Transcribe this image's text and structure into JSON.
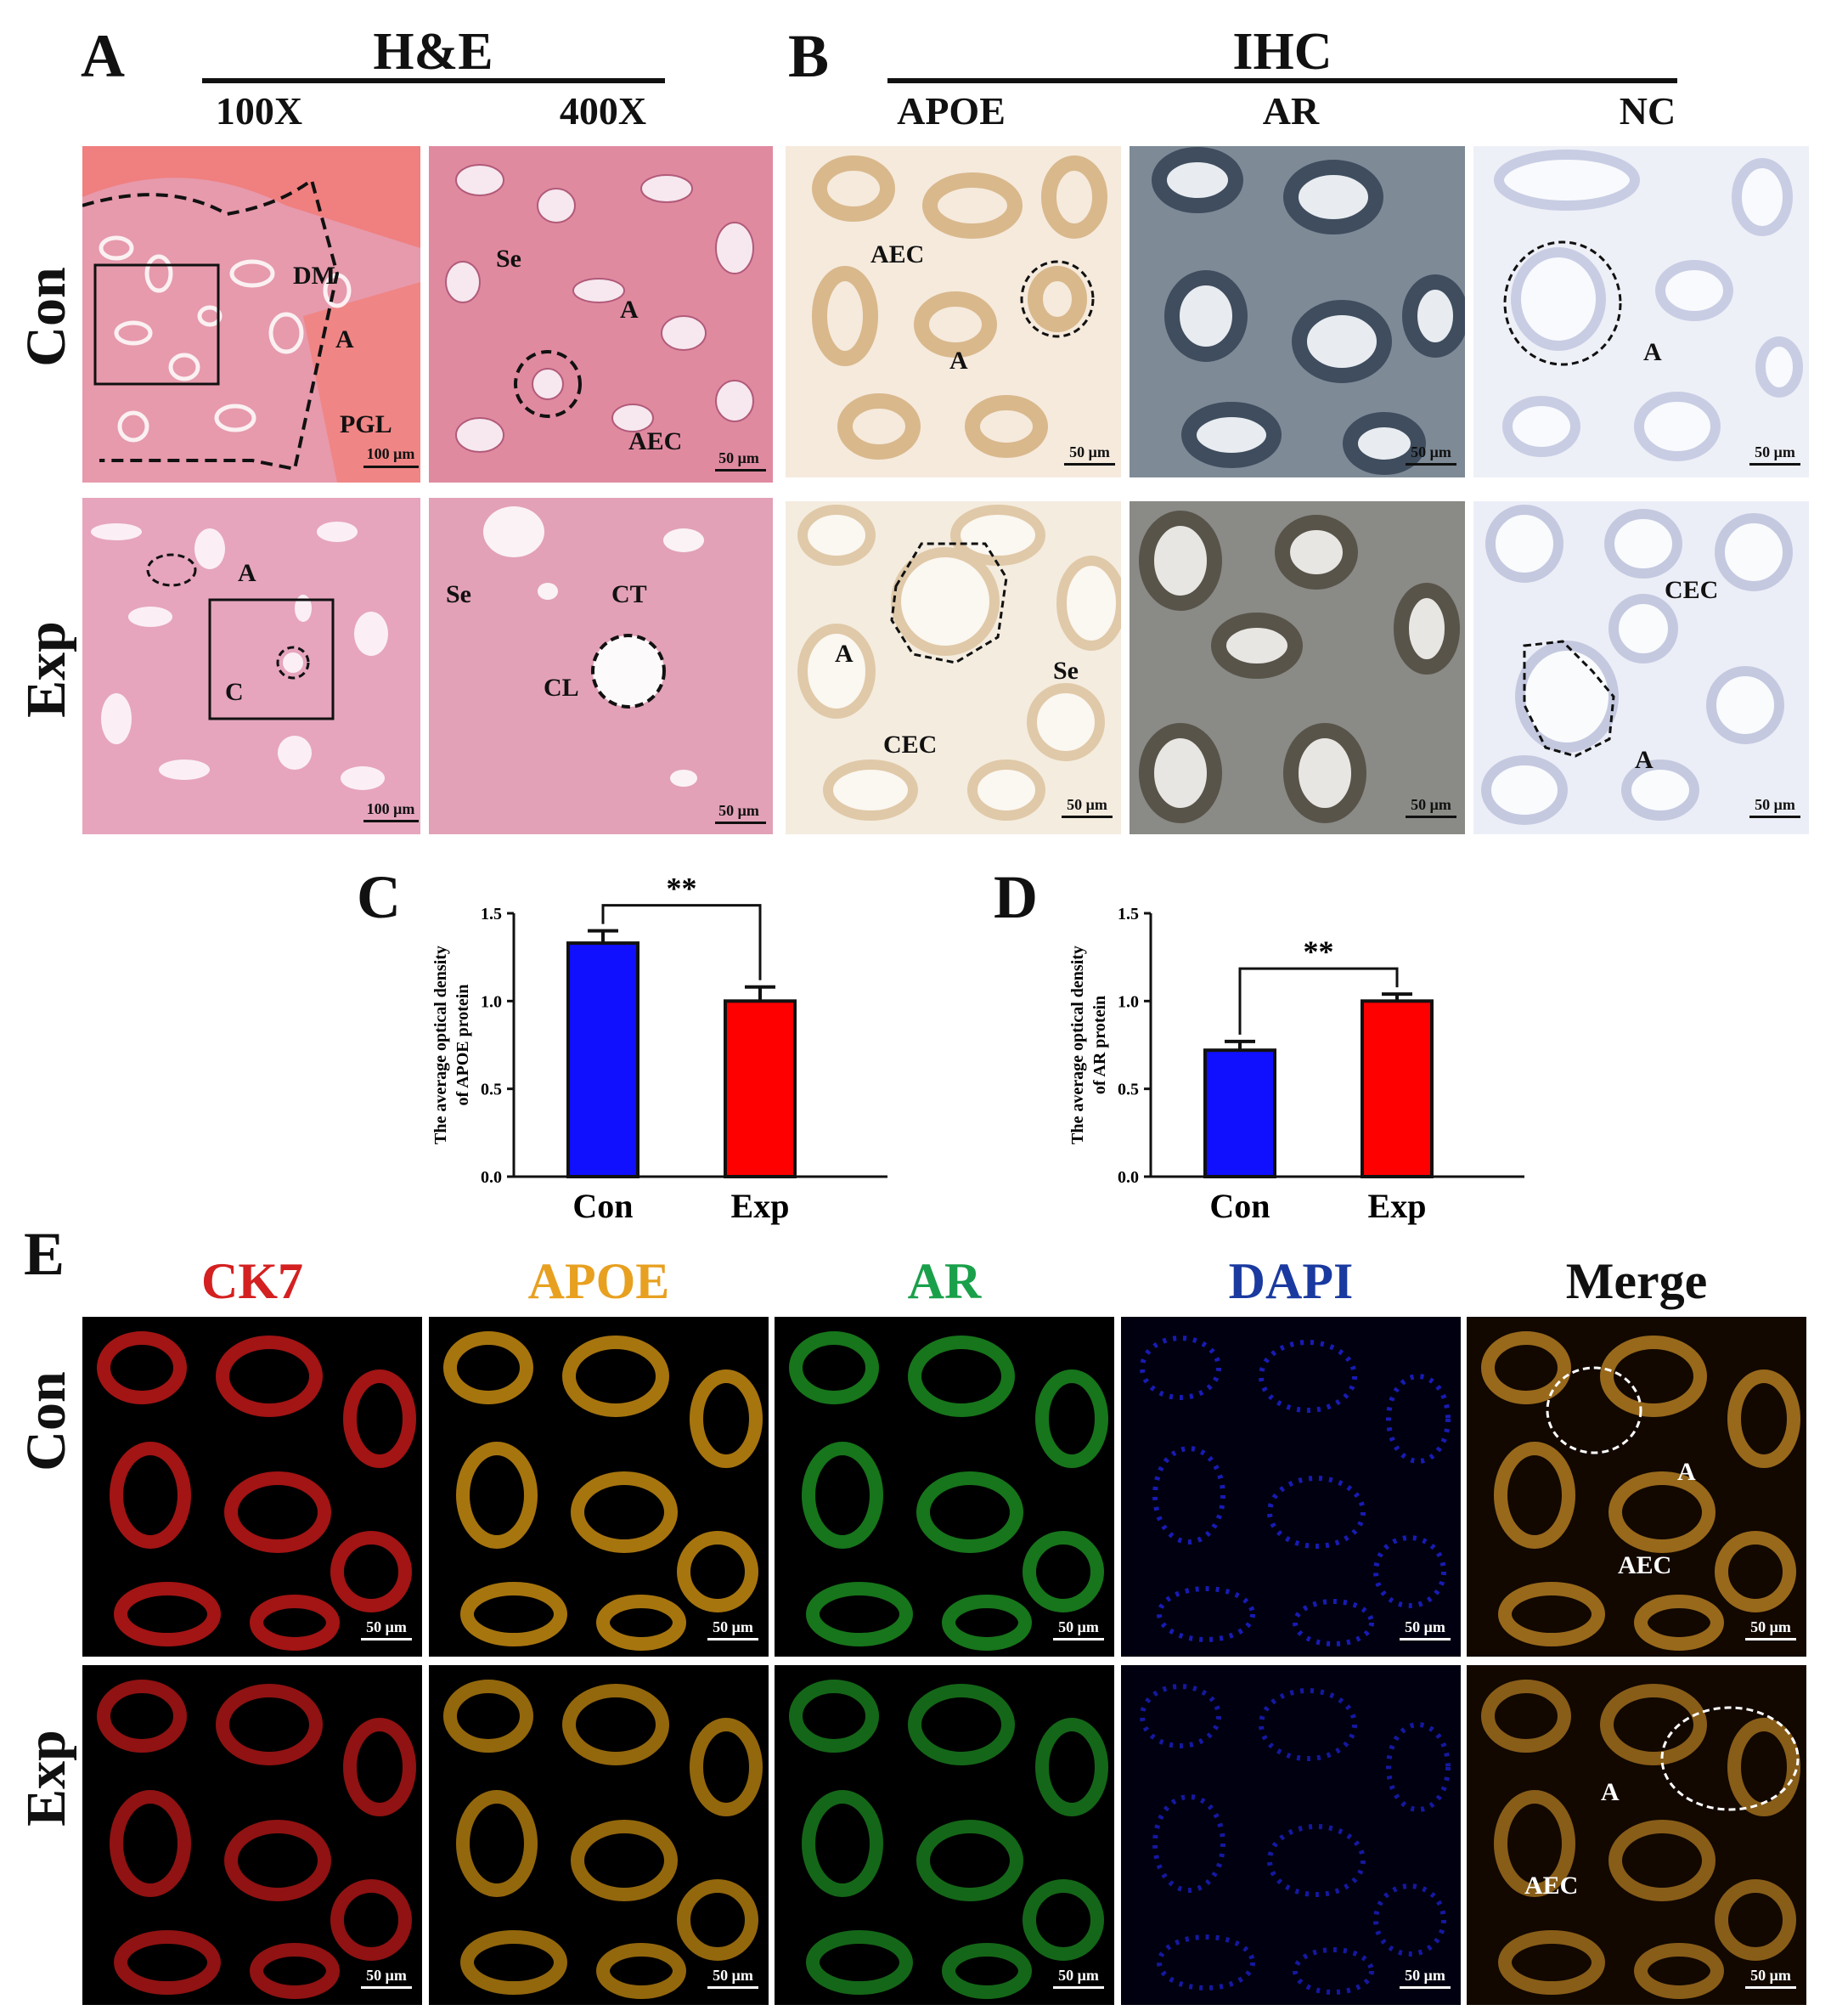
{
  "panels": {
    "a": "A",
    "b": "B",
    "c": "C",
    "d": "D",
    "e": "E"
  },
  "he": {
    "title": "H&E",
    "col1": "100X",
    "col2": "400X",
    "con_100": {
      "labels": [
        "DM",
        "A",
        "PGL"
      ],
      "scale": "100 μm"
    },
    "con_400": {
      "labels": [
        "Se",
        "A",
        "AEC"
      ],
      "scale": "50 μm"
    },
    "exp_100": {
      "labels": [
        "A",
        "C"
      ],
      "scale": "100 μm"
    },
    "exp_400": {
      "labels": [
        "Se",
        "CT",
        "CL"
      ],
      "scale": "50 μm"
    }
  },
  "ihc": {
    "title": "IHC",
    "col1": "APOE",
    "col2": "AR",
    "col3": "NC",
    "con_apoe": {
      "labels": [
        "AEC",
        "A"
      ],
      "scale": "50 μm"
    },
    "con_ar": {
      "scale": "50 μm"
    },
    "con_nc": {
      "labels": [
        "A"
      ],
      "scale": "50 μm"
    },
    "exp_apoe": {
      "labels": [
        "A",
        "Se",
        "CEC"
      ],
      "scale": "50 μm"
    },
    "exp_ar": {
      "scale": "50 μm"
    },
    "exp_nc": {
      "labels": [
        "CEC",
        "A"
      ],
      "scale": "50 μm"
    }
  },
  "rows": {
    "con": "Con",
    "exp": "Exp"
  },
  "if_panel": {
    "channels": [
      "CK7",
      "APOE",
      "AR",
      "DAPI",
      "Merge"
    ],
    "channel_colors": [
      "#d42020",
      "#e8a020",
      "#1aa04a",
      "#1a3aa0",
      "#111111"
    ],
    "scale": "50 μm",
    "merge_con_labels": [
      "A",
      "AEC"
    ],
    "merge_exp_labels": [
      "A",
      "AEC"
    ]
  },
  "chart_data": [
    {
      "type": "bar",
      "categories": [
        "Con",
        "Exp"
      ],
      "values": [
        1.33,
        1.0
      ],
      "errors": [
        0.07,
        0.08
      ],
      "colors": [
        "#1010ff",
        "#ff0000"
      ],
      "ylabel": "The average optical density  of APOE  protein",
      "ylim": [
        0,
        1.5
      ],
      "yticks": [
        "0.0",
        "0.5",
        "1.0",
        "1.5"
      ],
      "significance": "**",
      "grid": false
    },
    {
      "type": "bar",
      "categories": [
        "Con",
        "Exp"
      ],
      "values": [
        0.72,
        1.0
      ],
      "errors": [
        0.05,
        0.04
      ],
      "colors": [
        "#1010ff",
        "#ff0000"
      ],
      "ylabel": "The average optical density  of AR  protein",
      "ylim": [
        0,
        1.5
      ],
      "yticks": [
        "0.0",
        "0.5",
        "1.0",
        "1.5"
      ],
      "significance": "**",
      "grid": false
    }
  ]
}
